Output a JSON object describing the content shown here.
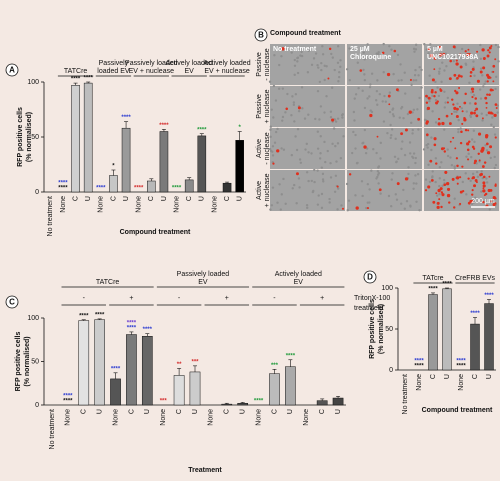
{
  "chart_data": [
    {
      "type": "bar",
      "panel": "A",
      "y_label": [
        "RFP positive cells",
        "(% normalised)"
      ],
      "x_label": "Compound treatment",
      "ylim": [
        0,
        100
      ],
      "yticks": [
        0,
        50,
        100
      ],
      "categories": [
        "No treatment"
      ],
      "values": [
        0
      ],
      "colors": [
        "#d9d9d9"
      ],
      "groups": [
        {
          "label": [
            "TATCre"
          ],
          "categories": [
            "None",
            "C",
            "U"
          ],
          "values": [
            0,
            97,
            99
          ],
          "errors": [
            null,
            2,
            1
          ],
          "colors": [
            "#d9d9d9",
            "#d0d0d0",
            "#bdbdbd"
          ],
          "annotations": [
            [
              {
                "text": "****",
                "color": "#111"
              },
              {
                "text": "****",
                "color": "#2b3bd1"
              }
            ],
            [
              {
                "text": "****",
                "color": "#111"
              }
            ],
            [
              {
                "text": "****",
                "color": "#111"
              }
            ]
          ]
        },
        {
          "label": [
            "Passively",
            "loaded EV"
          ],
          "categories": [
            "None",
            "C",
            "U"
          ],
          "values": [
            0,
            15,
            58
          ],
          "errors": [
            null,
            5,
            6
          ],
          "colors": [
            "#d9d9d9",
            "#c6c6c6",
            "#9a9a9a"
          ],
          "annotations": [
            [
              {
                "text": "****",
                "color": "#2b3bd1"
              }
            ],
            [
              {
                "text": "*",
                "color": "#111"
              }
            ],
            [
              {
                "text": "****",
                "color": "#2b3bd1"
              }
            ]
          ]
        },
        {
          "label": [
            "Passively loaded",
            "EV + nuclease"
          ],
          "categories": [
            "None",
            "C",
            "U"
          ],
          "values": [
            0,
            10,
            55
          ],
          "errors": [
            null,
            2,
            2
          ],
          "colors": [
            "#d9d9d9",
            "#b8b8b8",
            "#7a7a7a"
          ],
          "annotations": [
            [
              {
                "text": "****",
                "color": "#d42b2b"
              }
            ],
            null,
            [
              {
                "text": "****",
                "color": "#d42b2b"
              }
            ]
          ]
        },
        {
          "label": [
            "Actively loaded",
            "EV"
          ],
          "categories": [
            "None",
            "C",
            "U"
          ],
          "values": [
            0,
            11,
            51
          ],
          "errors": [
            null,
            2,
            2
          ],
          "colors": [
            "#d9d9d9",
            "#8a8a8a",
            "#555555"
          ],
          "annotations": [
            [
              {
                "text": "****",
                "color": "#1f9a3a"
              }
            ],
            null,
            [
              {
                "text": "****",
                "color": "#1f9a3a"
              }
            ]
          ]
        },
        {
          "label": [
            "Actively loaded",
            "EV + nuclease"
          ],
          "categories": [
            "None",
            "C",
            "U"
          ],
          "values": [
            0,
            8,
            47
          ],
          "errors": [
            null,
            1,
            8
          ],
          "colors": [
            "#d9d9d9",
            "#333333",
            "#000000"
          ],
          "annotations": [
            null,
            null,
            [
              {
                "text": "*",
                "color": "#1f9a3a"
              }
            ]
          ]
        }
      ]
    },
    {
      "type": "bar",
      "panel": "C",
      "y_label": [
        "RFP positive cells",
        "(% normalised)"
      ],
      "x_label": "Treatment",
      "ylim": [
        0,
        100
      ],
      "yticks": [
        0,
        50,
        100
      ],
      "side_label": [
        "TritonX-100",
        "treatment"
      ],
      "categories": [
        "No treatment"
      ],
      "values": [
        0
      ],
      "colors": [
        "#d9d9d9"
      ],
      "groups": [
        {
          "label": [
            "TATCre"
          ],
          "subgroups": [
            {
              "label": "-",
              "categories": [
                "None",
                "C",
                "U"
              ],
              "values": [
                0,
                97,
                98
              ],
              "errors": [
                null,
                1,
                1
              ],
              "colors": [
                "#d9d9d9",
                "#e2e2e2",
                "#cccccc"
              ],
              "annotations": [
                [
                  {
                    "text": "****",
                    "color": "#111"
                  },
                  {
                    "text": "****",
                    "color": "#2b3bd1"
                  }
                ],
                [
                  {
                    "text": "****",
                    "color": "#111"
                  }
                ],
                [
                  {
                    "text": "****",
                    "color": "#111"
                  }
                ]
              ]
            },
            {
              "label": "+",
              "categories": [
                "None",
                "C",
                "U"
              ],
              "values": [
                30,
                81,
                79
              ],
              "errors": [
                7,
                3,
                3
              ],
              "colors": [
                "#555555",
                "#7a7a7a",
                "#666666"
              ],
              "annotations": [
                [
                  {
                    "text": "****",
                    "color": "#2b3bd1"
                  }
                ],
                [
                  {
                    "text": "****",
                    "color": "#2b3bd1"
                  },
                  {
                    "text": "****",
                    "color": "#6a3bd1"
                  }
                ],
                [
                  {
                    "text": "****",
                    "color": "#2b3bd1"
                  }
                ]
              ]
            }
          ]
        },
        {
          "label": [
            "Passively loaded",
            "EV"
          ],
          "subgroups": [
            {
              "label": "-",
              "categories": [
                "None",
                "C",
                "U"
              ],
              "values": [
                0,
                34,
                38
              ],
              "errors": [
                null,
                8,
                7
              ],
              "colors": [
                "#d9d9d9",
                "#dddddd",
                "#cccccc"
              ],
              "annotations": [
                [
                  {
                    "text": "***",
                    "color": "#d42b2b"
                  }
                ],
                [
                  {
                    "text": "**",
                    "color": "#d42b2b"
                  }
                ],
                [
                  {
                    "text": "***",
                    "color": "#d42b2b"
                  }
                ]
              ]
            },
            {
              "label": "+",
              "categories": [
                "None",
                "C",
                "U"
              ],
              "values": [
                0,
                1,
                2
              ],
              "errors": [
                null,
                1,
                1
              ],
              "colors": [
                "#d9d9d9",
                "#666666",
                "#555555"
              ],
              "annotations": [
                null,
                null,
                null
              ]
            }
          ]
        },
        {
          "label": [
            "Actively loaded",
            "EV"
          ],
          "subgroups": [
            {
              "label": "-",
              "categories": [
                "None",
                "C",
                "U"
              ],
              "values": [
                0,
                36,
                44
              ],
              "errors": [
                null,
                5,
                8
              ],
              "colors": [
                "#d9d9d9",
                "#bbbbbb",
                "#aaaaaa"
              ],
              "annotations": [
                [
                  {
                    "text": "****",
                    "color": "#1f9a3a"
                  }
                ],
                [
                  {
                    "text": "***",
                    "color": "#1f9a3a"
                  }
                ],
                [
                  {
                    "text": "****",
                    "color": "#1f9a3a"
                  }
                ]
              ]
            },
            {
              "label": "+",
              "categories": [
                "None",
                "C",
                "U"
              ],
              "values": [
                0,
                5,
                8
              ],
              "errors": [
                null,
                2,
                2
              ],
              "colors": [
                "#d9d9d9",
                "#555555",
                "#444444"
              ],
              "annotations": [
                null,
                null,
                null
              ]
            }
          ]
        }
      ]
    },
    {
      "type": "bar",
      "panel": "D",
      "y_label": [
        "RFP positive cells",
        "(% normalised)"
      ],
      "x_label": "Compound treatment",
      "ylim": [
        0,
        100
      ],
      "yticks": [
        0,
        50,
        100
      ],
      "categories": [
        "No treatment"
      ],
      "values": [
        0
      ],
      "colors": [
        "#d9d9d9"
      ],
      "groups": [
        {
          "label": [
            "TATcre"
          ],
          "categories": [
            "None",
            "C",
            "U"
          ],
          "values": [
            0,
            92,
            99
          ],
          "errors": [
            null,
            2,
            1
          ],
          "colors": [
            "#d9d9d9",
            "#999999",
            "#bbbbbb"
          ],
          "annotations": [
            [
              {
                "text": "****",
                "color": "#111"
              },
              {
                "text": "****",
                "color": "#2b3bd1"
              }
            ],
            [
              {
                "text": "****",
                "color": "#111"
              }
            ],
            [
              {
                "text": "****",
                "color": "#111"
              }
            ]
          ]
        },
        {
          "label": [
            "CreFRB EVs"
          ],
          "categories": [
            "None",
            "C",
            "U"
          ],
          "values": [
            0,
            56,
            81
          ],
          "errors": [
            null,
            8,
            5
          ],
          "colors": [
            "#d9d9d9",
            "#555555",
            "#555555"
          ],
          "annotations": [
            [
              {
                "text": "****",
                "color": "#111"
              },
              {
                "text": "****",
                "color": "#2b3bd1"
              }
            ],
            [
              {
                "text": "****",
                "color": "#2b3bd1"
              }
            ],
            [
              {
                "text": "****",
                "color": "#2b3bd1"
              }
            ]
          ]
        }
      ]
    }
  ],
  "microscopy": {
    "panel": "B",
    "title": "Compound treatment",
    "columns": [
      [
        "No treatment"
      ],
      [
        "25 µM",
        "Chloroquine"
      ],
      [
        "5 µM",
        "UNC10217938A"
      ]
    ],
    "rows": [
      [
        "Passive",
        "- nuclease"
      ],
      [
        "Passive",
        "+ nuclease"
      ],
      [
        "Active",
        "- nuclease"
      ],
      [
        "Active",
        "+ nuclease"
      ]
    ],
    "scale_bar": "200 µm"
  }
}
